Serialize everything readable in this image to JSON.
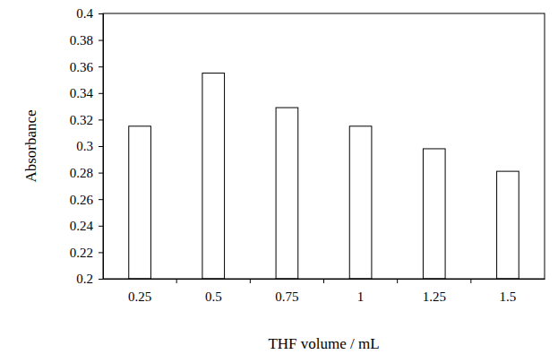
{
  "chart_data": {
    "type": "bar",
    "x_label": "THF volume / mL",
    "y_label": "Absorbance",
    "categories": [
      "0.25",
      "0.5",
      "0.75",
      "1",
      "1.25",
      "1.5"
    ],
    "values": [
      0.315,
      0.355,
      0.329,
      0.315,
      0.298,
      0.281
    ],
    "color": "#ffffff",
    "ylim": [
      0.2,
      0.4
    ],
    "yticks": [
      0.2,
      0.22,
      0.24,
      0.26,
      0.28,
      0.3,
      0.32,
      0.34,
      0.36,
      0.38,
      0.4
    ],
    "grid": false
  }
}
